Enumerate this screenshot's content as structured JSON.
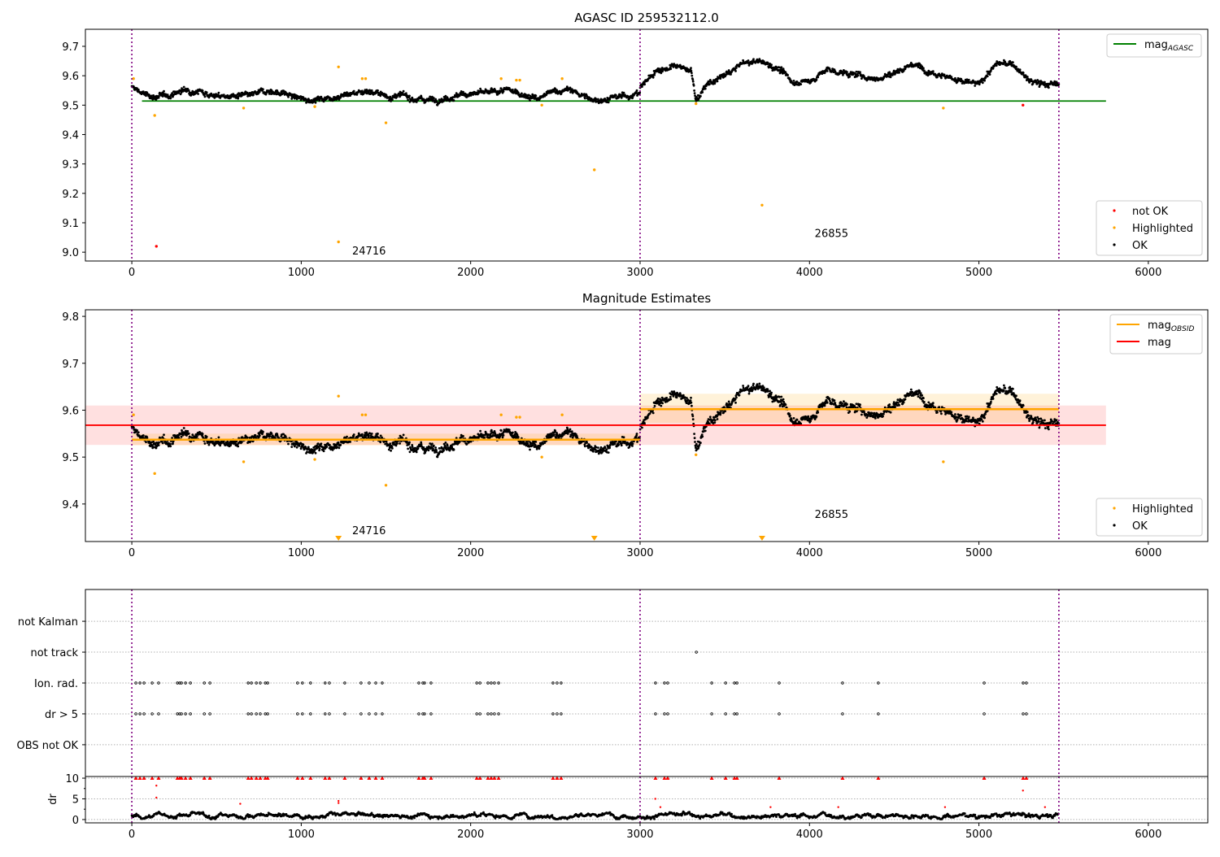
{
  "chart_data": [
    {
      "type": "scatter",
      "title": "AGASC ID 259532112.0",
      "xlim": [
        -274,
        6351
      ],
      "ylim": [
        8.97,
        9.758
      ],
      "xticks": [
        "0",
        "1000",
        "2000",
        "3000",
        "4000",
        "5000",
        "6000"
      ],
      "yticks": [
        "9.0",
        "9.1",
        "9.2",
        "9.3",
        "9.4",
        "9.5",
        "9.6",
        "9.7"
      ],
      "ytick_values": [
        9.0,
        9.1,
        9.2,
        9.3,
        9.4,
        9.5,
        9.6,
        9.7
      ],
      "legend_top": {
        "placement": "top-right",
        "entries": [
          {
            "label": "mag",
            "sub": "AGASC",
            "color": "#008000"
          }
        ]
      },
      "legend_bottom": {
        "placement": "bottom-right",
        "entries": [
          {
            "label": "not OK",
            "color": "#ff0000"
          },
          {
            "label": "Highlighted",
            "color": "#ffa500"
          },
          {
            "label": "OK",
            "color": "#000000"
          }
        ]
      },
      "mag_agasc": 9.514,
      "mag_agasc_range": [
        60,
        5750
      ],
      "obsid_labels": [
        {
          "text": "24716",
          "x": 1400,
          "y": 9.0
        },
        {
          "text": "26855",
          "x": 4130,
          "y": 9.06
        }
      ],
      "vlines": [
        0,
        3000,
        5472
      ],
      "not_ok": [
        [
          145,
          9.02
        ],
        [
          5260,
          9.5
        ]
      ],
      "highlighted": [
        [
          10,
          9.59
        ],
        [
          135,
          9.465
        ],
        [
          660,
          9.49
        ],
        [
          1080,
          9.495
        ],
        [
          1220,
          9.63
        ],
        [
          1220,
          9.035
        ],
        [
          1360,
          9.59
        ],
        [
          1380,
          9.59
        ],
        [
          1500,
          9.44
        ],
        [
          2180,
          9.59
        ],
        [
          2270,
          9.585
        ],
        [
          2290,
          9.585
        ],
        [
          2420,
          9.5
        ],
        [
          2540,
          9.59
        ],
        [
          2730,
          9.28
        ],
        [
          3330,
          9.505
        ],
        [
          3720,
          9.16
        ],
        [
          4790,
          9.49
        ]
      ]
    },
    {
      "type": "scatter",
      "title": "Magnitude Estimates",
      "xlim": [
        -274,
        6351
      ],
      "ylim": [
        9.32,
        9.814
      ],
      "xticks": [
        "0",
        "1000",
        "2000",
        "3000",
        "4000",
        "5000",
        "6000"
      ],
      "yticks": [
        "9.4",
        "9.5",
        "9.6",
        "9.7",
        "9.8"
      ],
      "ytick_values": [
        9.4,
        9.5,
        9.6,
        9.7,
        9.8
      ],
      "legend_top": {
        "placement": "top-right",
        "entries": [
          {
            "label": "mag",
            "sub": "OBSID",
            "color": "#ffa500"
          },
          {
            "label": "mag",
            "sub": "",
            "color": "#ff0000"
          }
        ]
      },
      "legend_bottom": {
        "placement": "bottom-right",
        "entries": [
          {
            "label": "Highlighted",
            "color": "#ffa500"
          },
          {
            "label": "OK",
            "color": "#000000"
          }
        ]
      },
      "mag": 9.568,
      "mag_band": [
        9.526,
        9.61
      ],
      "mag_range": [
        -274,
        5750
      ],
      "obsid_segments": [
        {
          "obsid": "24716",
          "x0": 0,
          "x1": 3000,
          "mag": 9.537,
          "band": [
            9.525,
            9.55
          ]
        },
        {
          "obsid": "26855",
          "x0": 3000,
          "x1": 5472,
          "mag": 9.602,
          "band": [
            9.573,
            9.635
          ]
        }
      ],
      "obsid_labels": [
        {
          "text": "24716",
          "x": 1400,
          "y": 9.344
        },
        {
          "text": "26855",
          "x": 4130,
          "y": 9.379
        }
      ],
      "out_of_range_highlighted_x": [
        1220,
        2730,
        3720
      ],
      "lightcurve_trend": {
        "x": [
          0,
          100,
          200,
          300,
          400,
          500,
          600,
          700,
          800,
          900,
          1000,
          1100,
          1200,
          1300,
          1400,
          1500,
          1600,
          1700,
          1800,
          1900,
          2000,
          2100,
          2200,
          2300,
          2400,
          2500,
          2600,
          2700,
          2800,
          2900,
          2999,
          3000,
          3100,
          3200,
          3300,
          3330,
          3400,
          3500,
          3600,
          3700,
          3800,
          3900,
          4000,
          4100,
          4200,
          4300,
          4400,
          4500,
          4600,
          4700,
          4800,
          4900,
          5000,
          5100,
          5200,
          5300,
          5400,
          5472
        ],
        "y": [
          9.56,
          9.53,
          9.53,
          9.55,
          9.55,
          9.53,
          9.53,
          9.53,
          9.55,
          9.54,
          9.52,
          9.52,
          9.53,
          9.54,
          9.55,
          9.53,
          9.53,
          9.52,
          9.52,
          9.53,
          9.54,
          9.54,
          9.55,
          9.54,
          9.52,
          9.55,
          9.55,
          9.52,
          9.52,
          9.53,
          9.54,
          9.56,
          9.62,
          9.63,
          9.62,
          9.52,
          9.57,
          9.6,
          9.64,
          9.65,
          9.63,
          9.58,
          9.58,
          9.62,
          9.61,
          9.6,
          9.59,
          9.61,
          9.64,
          9.62,
          9.6,
          9.58,
          9.57,
          9.64,
          9.64,
          9.58,
          9.57,
          9.57
        ]
      }
    },
    {
      "type": "scatter",
      "title": "",
      "categories": [
        "OBS not OK",
        "dr > 5",
        "Ion. rad.",
        "not track",
        "not Kalman"
      ],
      "xlim": [
        -274,
        6351
      ],
      "flag_times": [
        24,
        48,
        72,
        120,
        158,
        269,
        283,
        293,
        317,
        346,
        428,
        461,
        687,
        706,
        735,
        758,
        788,
        802,
        978,
        1007,
        1055,
        1141,
        1166,
        1257,
        1353,
        1401,
        1440,
        1478,
        1694,
        1718,
        1728,
        1766,
        2036,
        2055,
        2102,
        2121,
        2140,
        2165,
        2486,
        2510,
        2534,
        3091,
        3144,
        3163,
        3423,
        3505,
        3557,
        3572,
        3821,
        4195,
        4406,
        5031,
        5261,
        5280
      ],
      "not_track_times": [
        3332
      ]
    },
    {
      "type": "scatter",
      "ylabel": "dr",
      "xlim": [
        -274,
        6351
      ],
      "ylim": [
        -0.8,
        10.4
      ],
      "xticks": [
        "0",
        "1000",
        "2000",
        "3000",
        "4000",
        "5000",
        "6000"
      ],
      "yticks": [
        "0",
        "5",
        "10"
      ],
      "ytick_values": [
        0,
        5,
        10
      ],
      "dr_typical": 1.0,
      "dr_red_points": [
        [
          145,
          5.3
        ],
        [
          145,
          8.2
        ],
        [
          640,
          3.8
        ],
        [
          1220,
          4.0
        ],
        [
          1220,
          4.5
        ],
        [
          3090,
          5.0
        ],
        [
          3120,
          3.0
        ],
        [
          3770,
          3.0
        ],
        [
          4170,
          3.0
        ],
        [
          4800,
          3.0
        ],
        [
          5260,
          7.0
        ],
        [
          5390,
          3.0
        ]
      ],
      "dr_clip_value": 10
    }
  ]
}
